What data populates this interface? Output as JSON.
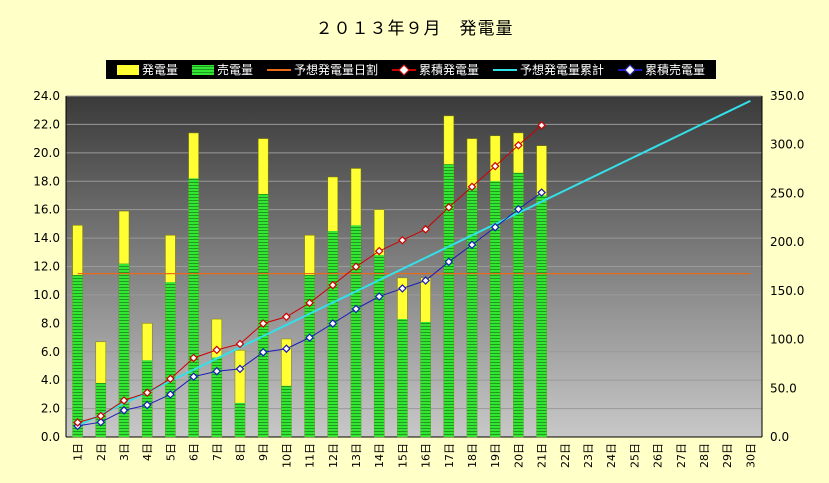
{
  "chart_data": {
    "type": "bar",
    "title": "２０１３年９月　発電量",
    "categories": [
      "1日",
      "2日",
      "3日",
      "4日",
      "5日",
      "6日",
      "7日",
      "8日",
      "9日",
      "10日",
      "11日",
      "12日",
      "13日",
      "14日",
      "15日",
      "16日",
      "17日",
      "18日",
      "19日",
      "20日",
      "21日",
      "22日",
      "23日",
      "24日",
      "25日",
      "26日",
      "27日",
      "28日",
      "29日",
      "30日"
    ],
    "y_left": {
      "min": 0,
      "max": 24,
      "step": 2,
      "tick_labels": [
        "0.0",
        "2.0",
        "4.0",
        "6.0",
        "8.0",
        "10.0",
        "12.0",
        "14.0",
        "16.0",
        "18.0",
        "20.0",
        "22.0",
        "24.0"
      ]
    },
    "y_right": {
      "min": 0,
      "max": 350,
      "step": 50,
      "tick_labels": [
        "0.0",
        "50.0",
        "100.0",
        "150.0",
        "200.0",
        "250.0",
        "300.0",
        "350.0"
      ]
    },
    "grid": true,
    "legend_position": "top",
    "series": [
      {
        "name": "発電量",
        "type": "bar",
        "axis": "left",
        "color": "#ffff33",
        "values": [
          14.9,
          6.7,
          15.9,
          8.0,
          14.2,
          21.4,
          8.3,
          6.1,
          21.0,
          6.9,
          14.2,
          18.3,
          18.9,
          16.0,
          11.2,
          11.2,
          22.6,
          21.0,
          21.2,
          21.4,
          20.5,
          null,
          null,
          null,
          null,
          null,
          null,
          null,
          null,
          null
        ]
      },
      {
        "name": "売電量",
        "type": "bar",
        "axis": "left",
        "color": "#33e633",
        "values": [
          11.4,
          3.8,
          12.2,
          5.4,
          10.9,
          18.2,
          5.6,
          2.4,
          17.1,
          3.6,
          11.4,
          14.5,
          14.9,
          12.8,
          8.3,
          8.1,
          19.2,
          17.5,
          18.0,
          18.6,
          17.0,
          null,
          null,
          null,
          null,
          null,
          null,
          null,
          null,
          null
        ]
      },
      {
        "name": "予想発電量日割",
        "type": "line",
        "axis": "left",
        "color": "#e86b1a",
        "values": [
          11.5,
          11.5,
          11.5,
          11.5,
          11.5,
          11.5,
          11.5,
          11.5,
          11.5,
          11.5,
          11.5,
          11.5,
          11.5,
          11.5,
          11.5,
          11.5,
          11.5,
          11.5,
          11.5,
          11.5,
          11.5,
          11.5,
          11.5,
          11.5,
          11.5,
          11.5,
          11.5,
          11.5,
          11.5,
          11.5
        ]
      },
      {
        "name": "累積発電量",
        "type": "line-marker",
        "axis": "right",
        "color": "#cc0000",
        "values": [
          14.9,
          21.6,
          37.5,
          45.5,
          59.7,
          81.1,
          89.4,
          95.5,
          116.5,
          123.4,
          137.6,
          155.9,
          174.8,
          190.8,
          202.0,
          213.2,
          235.8,
          256.8,
          278.0,
          299.4,
          319.9,
          null,
          null,
          null,
          null,
          null,
          null,
          null,
          null,
          null
        ]
      },
      {
        "name": "予想発電量累計",
        "type": "line",
        "axis": "right",
        "color": "#33e0e8",
        "values": [
          11.5,
          23.0,
          34.5,
          46.0,
          57.5,
          69.0,
          80.5,
          92.0,
          103.5,
          115.0,
          126.5,
          138.0,
          149.5,
          161.0,
          172.5,
          184.0,
          195.5,
          207.0,
          218.5,
          230.0,
          241.5,
          253.0,
          264.5,
          276.0,
          287.5,
          299.0,
          310.5,
          322.0,
          333.5,
          345.0
        ]
      },
      {
        "name": "累積売電量",
        "type": "line-marker",
        "axis": "right",
        "color": "#1a1ab8",
        "values": [
          11.4,
          15.2,
          27.4,
          32.8,
          43.7,
          61.9,
          67.5,
          69.9,
          87.0,
          90.6,
          102.0,
          116.5,
          131.4,
          144.2,
          152.5,
          160.6,
          179.8,
          197.3,
          215.3,
          233.9,
          250.9,
          null,
          null,
          null,
          null,
          null,
          null,
          null,
          null,
          null
        ]
      }
    ]
  }
}
